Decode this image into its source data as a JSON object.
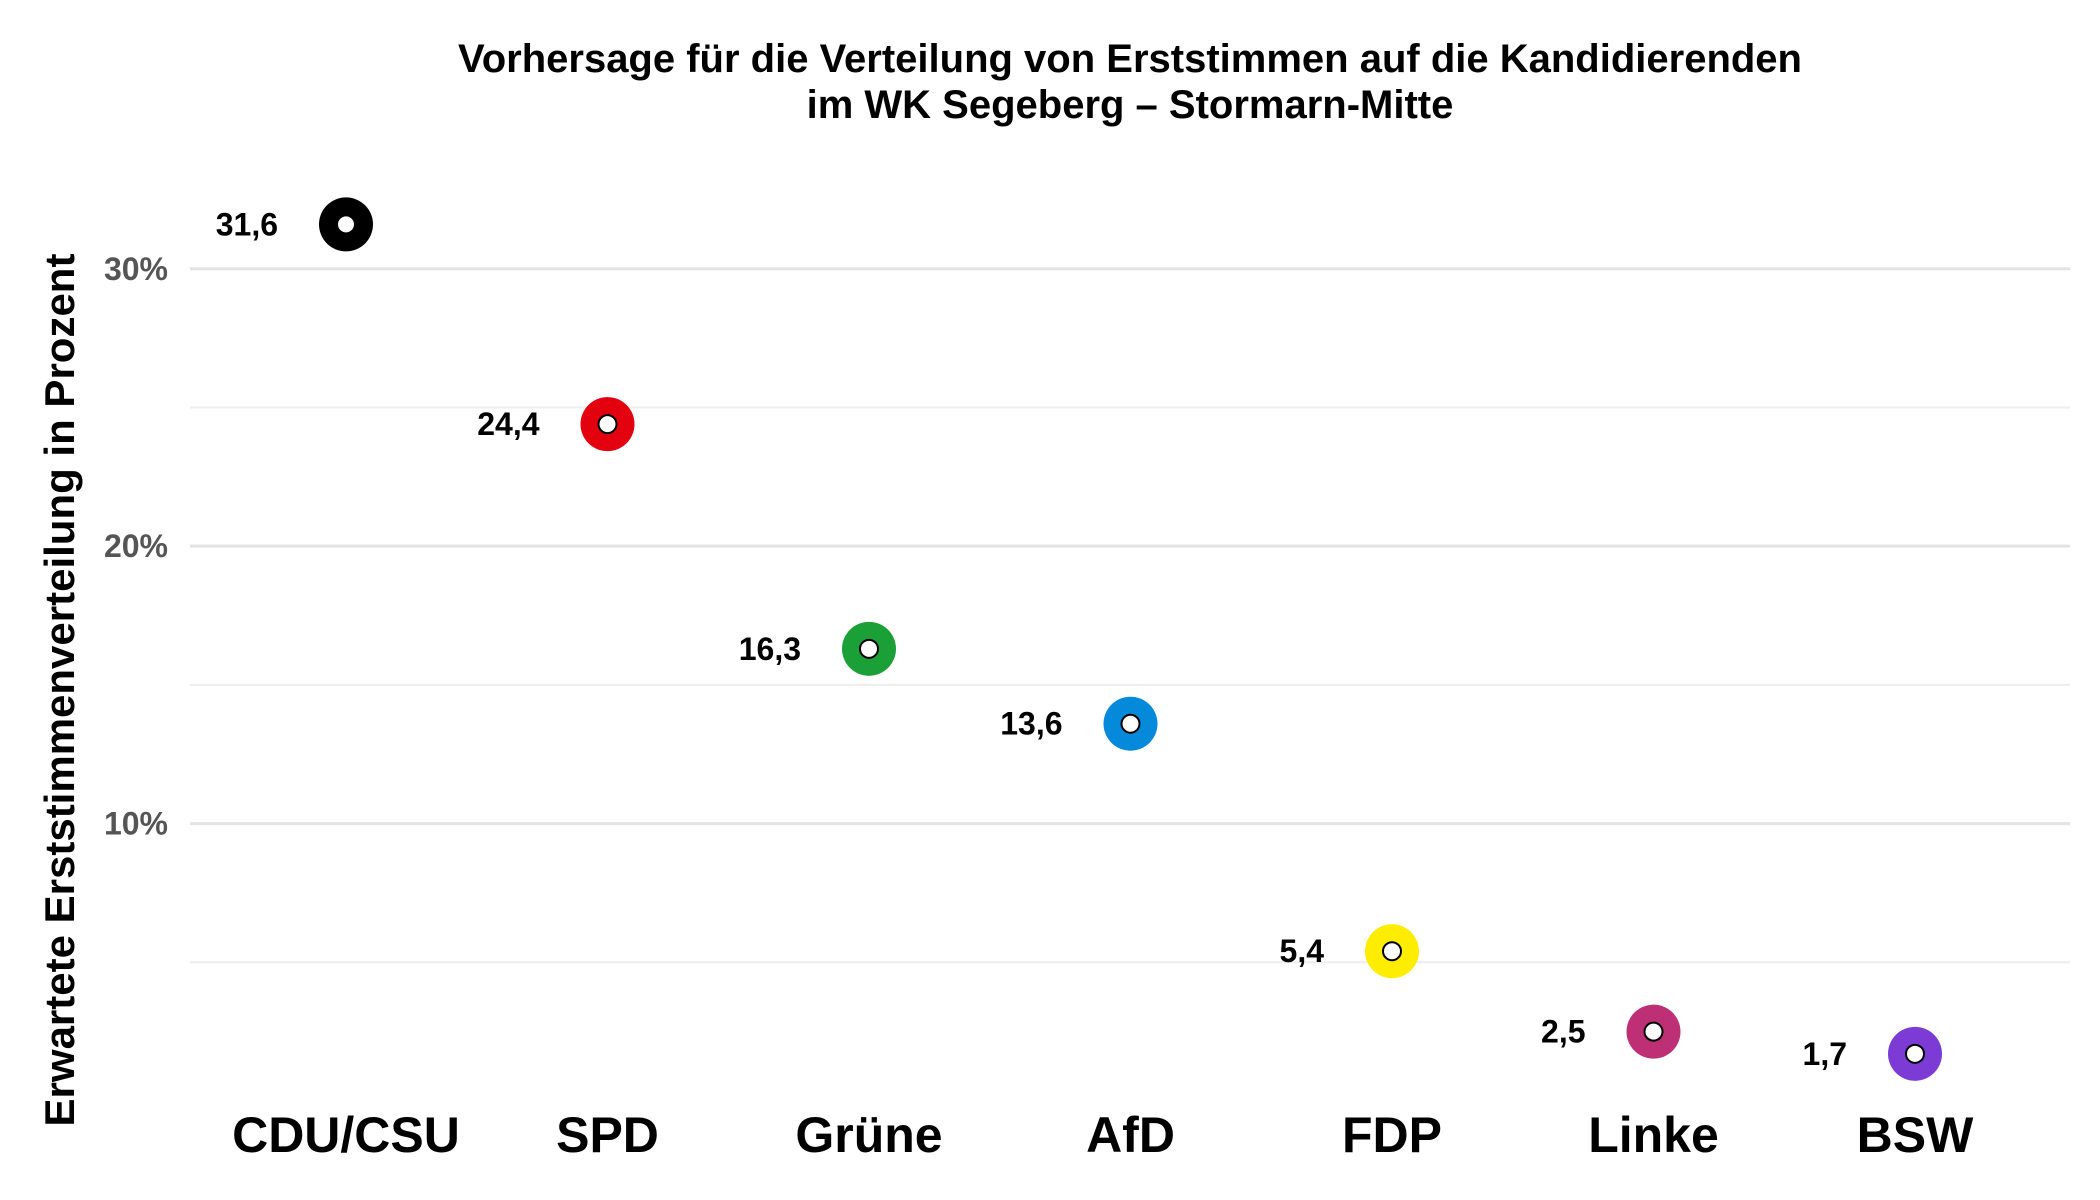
{
  "chart_data": {
    "type": "scatter",
    "title_lines": [
      "Vorhersage für die Verteilung von Erststimmen auf die Kandidierenden",
      "im WK Segeberg – Stormarn-Mitte"
    ],
    "xlabel": "",
    "ylabel": "Erwartete Erststimmenverteilung in Prozent",
    "categories": [
      "CDU/CSU",
      "SPD",
      "Grüne",
      "AfD",
      "FDP",
      "Linke",
      "BSW"
    ],
    "values": [
      31.6,
      24.4,
      16.3,
      13.6,
      5.4,
      2.5,
      1.7
    ],
    "value_labels": [
      "31,6",
      "24,4",
      "16,3",
      "13,6",
      "5,4",
      "2,5",
      "1,7"
    ],
    "colors": [
      "#000000",
      "#e3000f",
      "#1aa037",
      "#0489db",
      "#ffed00",
      "#be3075",
      "#7d3bd6"
    ],
    "yticks": [
      10,
      20,
      30
    ],
    "ytick_labels": [
      "10%",
      "20%",
      "30%"
    ],
    "minor_gridlines": [
      5,
      15,
      25
    ],
    "ylim": [
      0,
      33.2
    ],
    "grid": true,
    "legend": "none"
  }
}
